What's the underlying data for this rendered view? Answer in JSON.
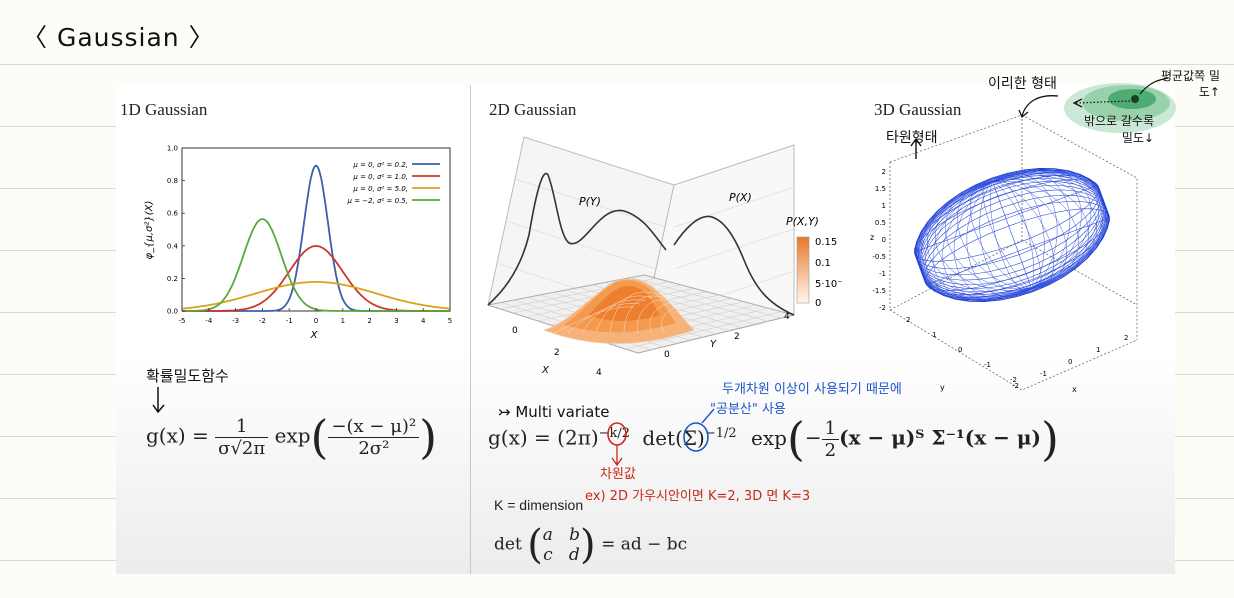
{
  "page_title": "〈 Gaussian 〉",
  "panels": {
    "p1": {
      "title": "1D Gaussian",
      "ylabel": "φ_{μ,σ²}(X)",
      "xlabel": "X",
      "xticks": [
        "-5",
        "-4",
        "-3",
        "-2",
        "-1",
        "0",
        "1",
        "2",
        "3",
        "4",
        "5"
      ],
      "yticks": [
        "0.0",
        "0.2",
        "0.4",
        "0.6",
        "0.8",
        "1.0"
      ],
      "legend": [
        "μ = 0,   σ² = 0.2,",
        "μ = 0,   σ² = 1.0,",
        "μ = 0,   σ² = 5.0,",
        "μ = −2,  σ² = 0.5,"
      ],
      "colors": [
        "#3b5fae",
        "#c9392b",
        "#d9a21b",
        "#5aa83a"
      ]
    },
    "p2": {
      "title": "2D Gaussian",
      "label_py": "P(Y)",
      "label_px": "P(X)",
      "cbar_title": "P(X,Y)",
      "cbar_ticks": [
        "0.15",
        "0.1",
        "5·10⁻",
        "0"
      ],
      "axis_x": "X",
      "axis_y": "Y",
      "ticks_x": [
        "0",
        "2",
        "4"
      ],
      "ticks_y": [
        "0",
        "2",
        "4"
      ]
    },
    "p3": {
      "title": "3D Gaussian",
      "zticks": [
        "2",
        "1.5",
        "1",
        "0.5",
        "0",
        "-0.5",
        "-1",
        "-1.5",
        "-2"
      ],
      "zlabel": "z",
      "ylabel": "y",
      "xlabel": "x",
      "yticks": [
        "2",
        "1",
        "0",
        "-1",
        "-2"
      ],
      "xticks": [
        "-2",
        "-1",
        "0",
        "1",
        "2"
      ]
    }
  },
  "formulas": {
    "g1_lhs": "g(x) =",
    "g1_num": "1",
    "g1_den": "σ√2π",
    "g1_exp": "exp",
    "g1_inner_num": "−(x − μ)²",
    "g1_inner_den": "2σ²",
    "g2_lhs": "g(x) = (2π)",
    "g2_pow": "−k/2",
    "g2_det": "det(Σ)",
    "g2_detpow": "−1/2",
    "g2_exp": "exp",
    "g2_minus": "−",
    "g2_half_num": "1",
    "g2_half_den": "2",
    "g2_rest": "(x − μ)ᵀ Σ⁻¹(x − μ)",
    "k_def": "K = dimension",
    "det_lhs": "det",
    "det_a": "a",
    "det_b": "b",
    "det_c": "c",
    "det_d": "d",
    "det_rhs": "= ad − bc"
  },
  "annotations": {
    "pdf": "확률밀도함수",
    "multivariate": "↣ Multi variate",
    "dim_note": "두개차원 이상이 사용되기 때문에",
    "cov_note": "\"공분산\" 사용",
    "dim_label": "차원값",
    "example": "ex) 2D 가우시안이면  K=2, 3D 면 K=3",
    "ellipse": "타원형태",
    "ideal": "이리한 형태",
    "center_dense": "평균값쪽 밀도↑",
    "outer_sparse": "밖으로 갈수록 밀도↓"
  },
  "colors": {
    "annot_red": "#c62a1a",
    "annot_blue": "#1d55c9",
    "ink": "#111111",
    "mesh_blue": "#1f3fd6",
    "surface_orange": "#f08a3c"
  }
}
